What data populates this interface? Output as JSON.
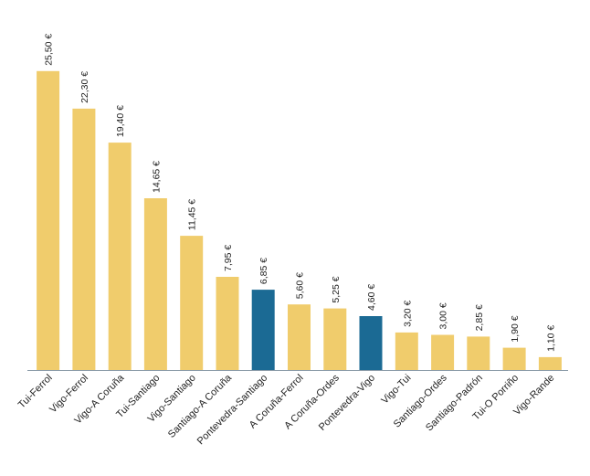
{
  "chart_data": {
    "type": "bar",
    "title": "",
    "xlabel": "",
    "ylabel": "",
    "ylim": [
      0,
      26.5
    ],
    "grid": false,
    "legend": "none",
    "categories": [
      "Tui-Ferrol",
      "Vigo-Ferrol",
      "Vigo-A Coruña",
      "Tui-Santiago",
      "Vigo-Santiago",
      "Santiago-A Coruña",
      "Pontevedra-Santiago",
      "A Coruña-Ferrol",
      "A Coruña-Ordes",
      "Pontevedra-Vigo",
      "Vigo-Tui",
      "Santiago-Ordes",
      "Santiago-Padrón",
      "Tui-O Porriño",
      "Vigo-Rande"
    ],
    "values": [
      25.5,
      22.3,
      19.4,
      14.65,
      11.45,
      7.95,
      6.85,
      5.6,
      5.25,
      4.6,
      3.2,
      3.0,
      2.85,
      1.9,
      1.1
    ],
    "value_labels": [
      "25,50 €",
      "22,30 €",
      "19,40 €",
      "14,65 €",
      "11,45 €",
      "7,95 €",
      "6,85 €",
      "5,60 €",
      "5,25 €",
      "4,60 €",
      "3,20 €",
      "3,00 €",
      "2,85 €",
      "1,90 €",
      "1,10 €"
    ],
    "highlighted": [
      "Pontevedra-Santiago",
      "Pontevedra-Vigo"
    ],
    "colors": {
      "default": "#F0CC6C",
      "highlight": "#1B6A94",
      "axis": "#8A9AA8"
    }
  }
}
